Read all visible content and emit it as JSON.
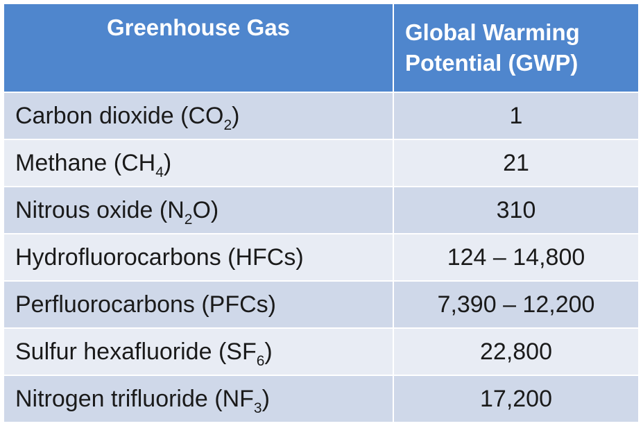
{
  "header": {
    "gas": "Greenhouse Gas",
    "gwp_line1": "Global Warming",
    "gwp_line2": "Potential (GWP)"
  },
  "rows": [
    {
      "name": "Carbon dioxide (CO",
      "sub": "2",
      "tail": ")",
      "gwp": "1"
    },
    {
      "name": "Methane (CH",
      "sub": "4",
      "tail": ")",
      "gwp": "21"
    },
    {
      "name": "Nitrous oxide (N",
      "sub": "2",
      "tail": "O)",
      "gwp": "310"
    },
    {
      "name": "Hydrofluorocarbons (HFCs)",
      "sub": "",
      "tail": "",
      "gwp": "124 – 14,800"
    },
    {
      "name": "Perfluorocarbons (PFCs)",
      "sub": "",
      "tail": "",
      "gwp": "7,390 – 12,200"
    },
    {
      "name": "Sulfur hexafluoride (SF",
      "sub": "6",
      "tail": ")",
      "gwp": "22,800"
    },
    {
      "name": "Nitrogen trifluoride (NF",
      "sub": "3",
      "tail": ")",
      "gwp": "17,200"
    }
  ]
}
